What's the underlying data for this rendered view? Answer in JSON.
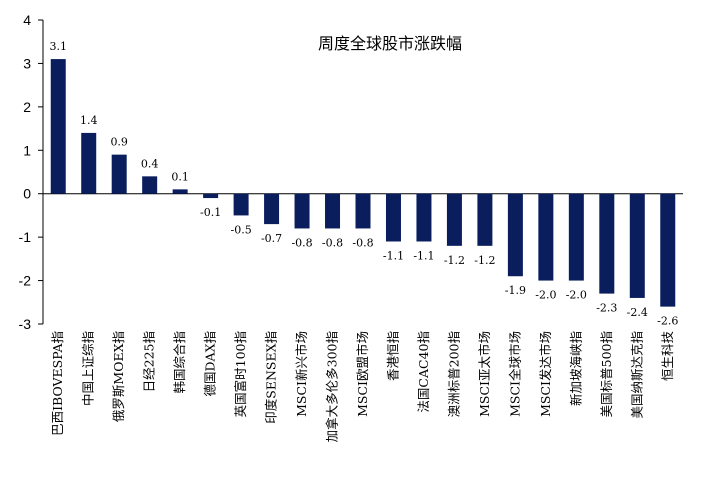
{
  "chart_data": {
    "type": "bar",
    "title": "周度全球股市涨跌幅",
    "ylim": [
      -3,
      4
    ],
    "yticks": [
      4,
      3,
      2,
      1,
      0,
      -1,
      -2,
      -3
    ],
    "grid": false,
    "legend": "none",
    "bar_color": "#0A1E5E",
    "categories": [
      "巴西IBOVESPA指",
      "中国上证综指",
      "俄罗斯MOEX指",
      "日经225指",
      "韩国综合指",
      "德国DAX指",
      "英国富时100指",
      "印度SENSEX指",
      "MSCI新兴市场",
      "加拿大多伦多300指",
      "MSCI欧盟市场",
      "香港恒指",
      "法国CAC40指",
      "澳洲标普200指",
      "MSCI亚太市场",
      "MSCI全球市场",
      "MSCI发达市场",
      "新加坡海峡指",
      "美国标普500指",
      "美国纳斯达克指",
      "恒生科技"
    ],
    "values": [
      3.1,
      1.4,
      0.9,
      0.4,
      0.1,
      -0.1,
      -0.5,
      -0.7,
      -0.8,
      -0.8,
      -0.8,
      -1.1,
      -1.1,
      -1.2,
      -1.2,
      -1.9,
      -2.0,
      -2.0,
      -2.3,
      -2.4,
      -2.6
    ],
    "data_labels": [
      "3.1",
      "1.4",
      "0.9",
      "0.4",
      "0.1",
      "-0.1",
      "-0.5",
      "-0.7",
      "-0.8",
      "-0.8",
      "-0.8",
      "-1.1",
      "-1.1",
      "-1.2",
      "-1.2",
      "-1.9",
      "-2.0",
      "-2.0",
      "-2.3",
      "-2.4",
      "-2.6"
    ]
  }
}
